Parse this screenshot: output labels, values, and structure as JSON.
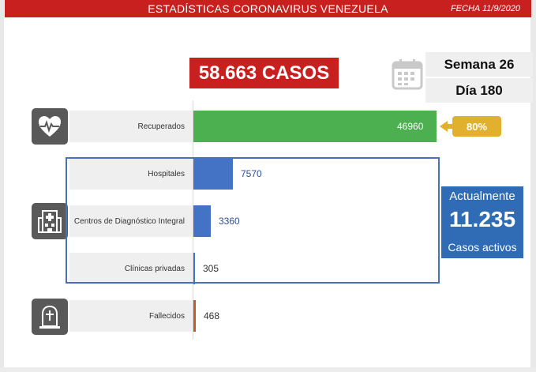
{
  "header": {
    "title": "ESTADÍSTICAS CORONAVIRUS VENEZUELA",
    "date": "FECHA 11/9/2020"
  },
  "summary": {
    "total_cases": "58.663 CASOS",
    "week": "Semana 26",
    "day": "Día 180"
  },
  "recovered_percent": "80%",
  "active": {
    "title": "Actualmente",
    "value": "11.235",
    "label": "Casos activos"
  },
  "icons": {
    "recuperados": "heart-pulse-icon",
    "hospitalizados": "hospital-icon",
    "fallecidos": "tombstone-icon",
    "fecha": "calendar-icon"
  },
  "colors": {
    "header": "#c8201f",
    "recuperados": "#4caf50",
    "hospitalizados": "#4472c4",
    "fallecidos": "#c65a2a",
    "porcentaje": "#e0b02e",
    "activos": "#2f6cb5"
  },
  "chart_data": {
    "type": "bar",
    "orientation": "horizontal",
    "categories": [
      "Recuperados",
      "Hospitales",
      "Centros de Diagnóstico Integral",
      "Clínicas privadas",
      "Fallecidos"
    ],
    "values": [
      46960,
      7570,
      3360,
      305,
      468
    ],
    "value_labels": [
      "46960",
      "7570",
      "3360",
      "305",
      "468"
    ],
    "xlim": [
      0,
      46960
    ],
    "grid": false,
    "legend": "none"
  }
}
